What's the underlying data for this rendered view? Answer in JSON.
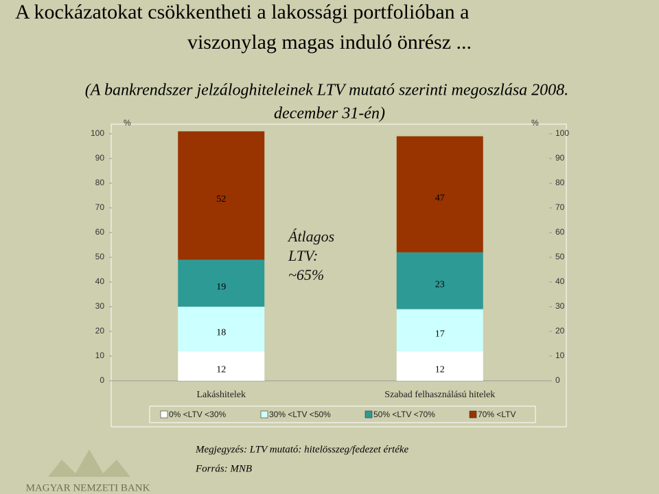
{
  "title": [
    "A kockázatokat csökkentheti a lakossági portfolióban a",
    "viszonylag magas induló önrész ..."
  ],
  "subtitle": [
    "(A bankrendszer jelzáloghiteleinek LTV mutató szerinti megoszlása 2008.",
    "december 31-én)"
  ],
  "chart_data": {
    "type": "stacked_bar",
    "y_label": "%",
    "y2_label": "%",
    "categories": [
      "Lakáshitelek",
      "Szabad felhasználású hitelek"
    ],
    "series": [
      {
        "name": "0% <LTV <30%",
        "color": "#ffffff",
        "values": [
          12,
          12
        ]
      },
      {
        "name": "30% <LTV <50%",
        "color": "#ccffff",
        "values": [
          18,
          17
        ]
      },
      {
        "name": "50% <LTV <70%",
        "color": "#2e9a96",
        "values": [
          19,
          23
        ]
      },
      {
        "name": "70% <LTV",
        "color": "#993300",
        "values": [
          52,
          47
        ]
      }
    ],
    "ylim": [
      0,
      100
    ],
    "yticks": [
      0,
      10,
      20,
      30,
      40,
      50,
      60,
      70,
      80,
      90,
      100
    ],
    "y2lim": [
      0,
      100
    ],
    "y2ticks": [
      0,
      10,
      20,
      30,
      40,
      50,
      60,
      70,
      80,
      90,
      100
    ],
    "annotation": [
      "Átlagos",
      "LTV:",
      "~65%"
    ],
    "legend": "bottom"
  },
  "notes": [
    "Megjegyzés: LTV mutató: hitelösszeg/fedezet értéke",
    "Forrás: MNB"
  ],
  "logo": "MAGYAR NEMZETI BANK"
}
